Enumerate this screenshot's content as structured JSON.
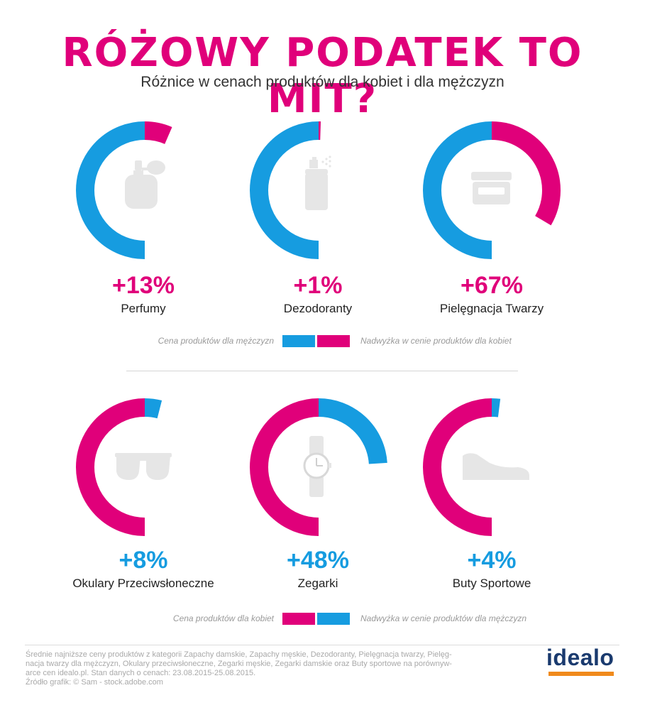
{
  "header": {
    "title": "RÓŻOWY PODATEK TO MIT?",
    "subtitle": "Różnice w cenach produktów dla kobiet i dla mężczyzn"
  },
  "colors": {
    "blue": "#169ce0",
    "pink": "#e0007a",
    "icon": "#e6e6e6"
  },
  "chart_data": [
    {
      "type": "donut-row",
      "base_series": "Cena produktów dla mężczyzn",
      "premium_series": "Nadwyżka w cenie produktów dla kobiet",
      "base_color": "#169ce0",
      "premium_color": "#e0007a",
      "items": [
        {
          "label": "Perfumy",
          "value_label": "+13%",
          "value": 13,
          "icon": "perfume-icon"
        },
        {
          "label": "Dezodoranty",
          "value_label": "+1%",
          "value": 1,
          "icon": "deodorant-icon"
        },
        {
          "label": "Pielęgnacja Twarzy",
          "value_label": "+67%",
          "value": 67,
          "icon": "cream-jar-icon"
        }
      ]
    },
    {
      "type": "donut-row",
      "base_series": "Cena produktów dla kobiet",
      "premium_series": "Nadwyżka w cenie produktów dla mężczyzn",
      "base_color": "#e0007a",
      "premium_color": "#169ce0",
      "items": [
        {
          "label": "Okulary Przeciwsłoneczne",
          "value_label": "+8%",
          "value": 8,
          "icon": "sunglasses-icon"
        },
        {
          "label": "Zegarki",
          "value_label": "+48%",
          "value": 48,
          "icon": "watch-icon"
        },
        {
          "label": "Buty Sportowe",
          "value_label": "+4%",
          "value": 4,
          "icon": "sneaker-icon"
        }
      ]
    }
  ],
  "legend_top": {
    "left": "Cena produktów dla mężczyzn",
    "right": "Nadwyżka w cenie produktów dla kobiet"
  },
  "legend_bottom": {
    "left": "Cena produktów dla kobiet",
    "right": "Nadwyżka w cenie produktów dla mężczyzn"
  },
  "footer": {
    "lines": [
      "Średnie najniższe ceny produktów z kategorii Zapachy damskie, Zapachy męskie, Dezodoranty, Pielęgnacja twarzy, Pielęg-",
      "nacja twarzy dla mężczyzn, Okulary przeciwsłoneczne, Zegarki męskie, Zegarki damskie oraz Buty sportowe na porównyw-",
      "arce cen idealo.pl. Stan danych o cenach: 23.08.2015-25.08.2015.",
      "Źródło grafik: © Sam - stock.adobe.com"
    ],
    "logo": "idealo"
  }
}
